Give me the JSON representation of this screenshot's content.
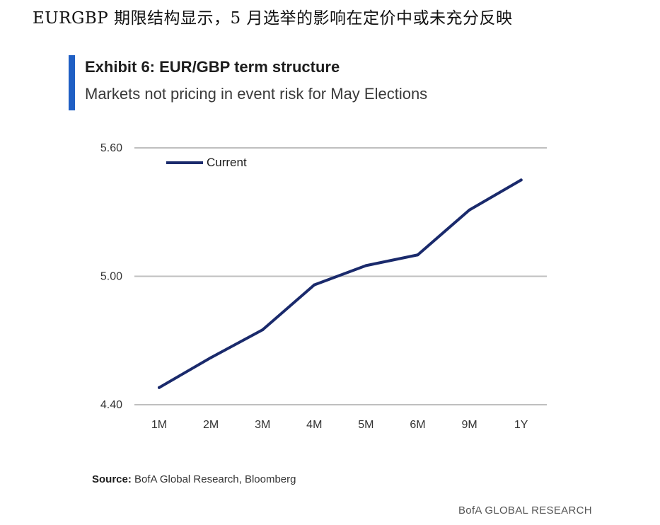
{
  "page": {
    "heading": "EURGBP 期限结构显示，5 月选举的影响在定价中或未充分反映"
  },
  "exhibit": {
    "title": "Exhibit 6: EUR/GBP term structure",
    "subtitle": "Markets not pricing in event risk for May Elections"
  },
  "source": {
    "label": "Source:",
    "text": " BofA Global Research, Bloomberg"
  },
  "brand": {
    "text": "BofA GLOBAL RESEARCH"
  },
  "colors": {
    "accent": "#1f5fc4",
    "series": "#1a2a6c",
    "grid": "#bfbfbf"
  },
  "chart_data": {
    "type": "line",
    "title": "Exhibit 6: EUR/GBP term structure",
    "xlabel": "",
    "ylabel": "",
    "categories": [
      "1M",
      "2M",
      "3M",
      "4M",
      "5M",
      "6M",
      "9M",
      "1Y"
    ],
    "series": [
      {
        "name": "Current",
        "values": [
          4.48,
          4.62,
          4.75,
          4.96,
          5.05,
          5.1,
          5.31,
          5.45
        ]
      }
    ],
    "ylim": [
      4.4,
      5.6
    ],
    "yticks": [
      "5.60",
      "5.00",
      "4.40"
    ],
    "ytick_values": [
      5.6,
      5.0,
      4.4
    ],
    "grid": true,
    "legend": "top-left"
  }
}
